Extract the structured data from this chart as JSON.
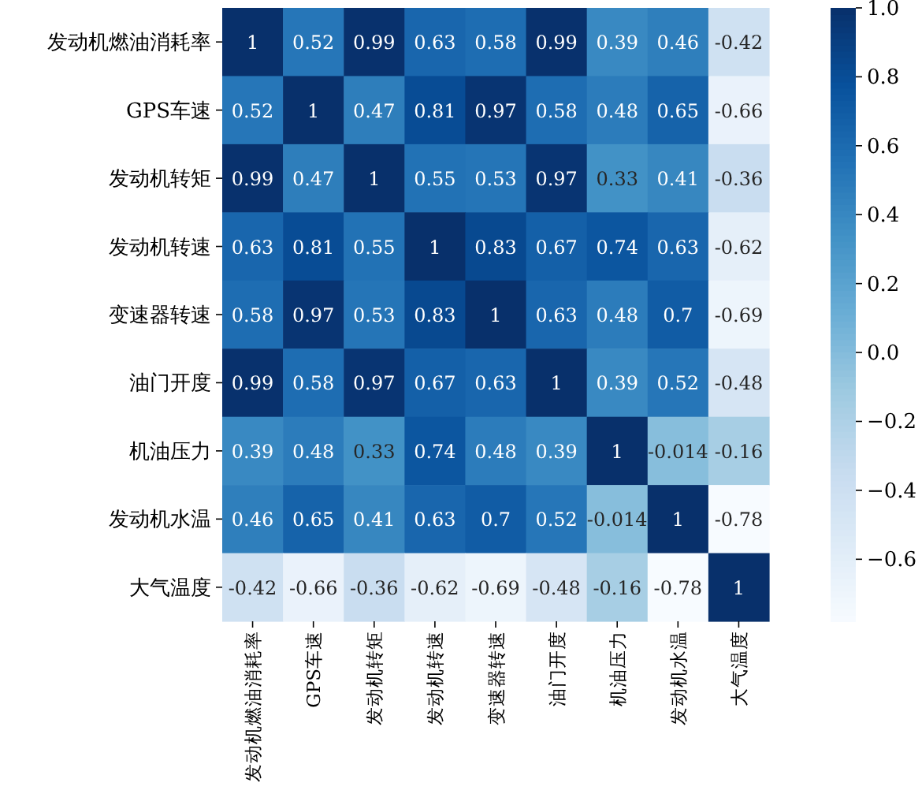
{
  "chart_data": {
    "type": "heatmap",
    "categories": [
      "发动机燃油消耗率",
      "GPS车速",
      "发动机转矩",
      "发动机转速",
      "变速器转速",
      "油门开度",
      "机油压力",
      "发动机水温",
      "大气温度"
    ],
    "y_categories": [
      "发动机燃油消耗率",
      "GPS车速",
      "发动机转矩",
      "发动机转速",
      "变速器转速",
      "油门开度",
      "机油压力",
      "发动机水温",
      "大气温度"
    ],
    "cells": [
      [
        1,
        0.52,
        0.99,
        0.63,
        0.58,
        0.99,
        0.39,
        0.46,
        -0.42
      ],
      [
        0.52,
        1,
        0.47,
        0.81,
        0.97,
        0.58,
        0.48,
        0.65,
        -0.66
      ],
      [
        0.99,
        0.47,
        1,
        0.55,
        0.53,
        0.97,
        0.33,
        0.41,
        -0.36
      ],
      [
        0.63,
        0.81,
        0.55,
        1,
        0.83,
        0.67,
        0.74,
        0.63,
        -0.62
      ],
      [
        0.58,
        0.97,
        0.53,
        0.83,
        1,
        0.63,
        0.48,
        0.7,
        -0.69
      ],
      [
        0.99,
        0.58,
        0.97,
        0.67,
        0.63,
        1,
        0.39,
        0.52,
        -0.48
      ],
      [
        0.39,
        0.48,
        0.33,
        0.74,
        0.48,
        0.39,
        1,
        -0.014,
        -0.16
      ],
      [
        0.46,
        0.65,
        0.41,
        0.63,
        0.7,
        0.52,
        -0.014,
        1,
        -0.78
      ],
      [
        -0.42,
        -0.66,
        -0.36,
        -0.62,
        -0.69,
        -0.48,
        -0.16,
        -0.78,
        1
      ]
    ],
    "data_labels": true,
    "clim": [
      -0.78,
      1
    ],
    "cticks": [
      {
        "value": 1,
        "label": "1.0"
      },
      {
        "value": 0.8,
        "label": "0.8"
      },
      {
        "value": 0.6,
        "label": "0.6"
      },
      {
        "value": 0.4,
        "label": "0.4"
      },
      {
        "value": 0.2,
        "label": "0.2"
      },
      {
        "value": 0,
        "label": "0.0"
      },
      {
        "value": -0.2,
        "label": "−0.2"
      },
      {
        "value": -0.4,
        "label": "−0.4"
      },
      {
        "value": -0.6,
        "label": "−0.6"
      }
    ]
  }
}
